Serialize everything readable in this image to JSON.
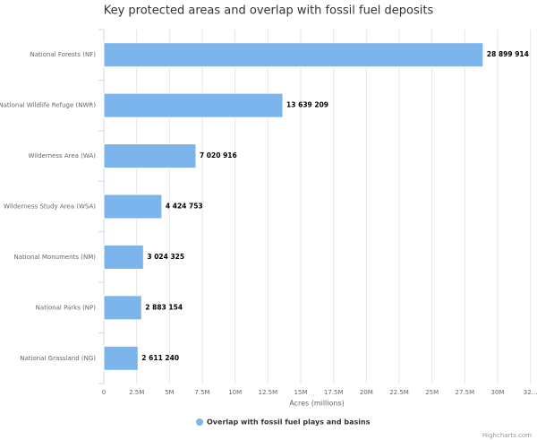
{
  "chart_data": {
    "type": "bar",
    "orientation": "horizontal",
    "title": "Key protected areas and overlap with fossil fuel deposits",
    "categories": [
      "National Forests (NF)",
      "National Wildlife Refuge (NWR)",
      "Wilderness Area (WA)",
      "Wilderness Study Area (WSA)",
      "National Monuments (NM)",
      "National Parks (NP)",
      "National Grassland (NG)"
    ],
    "series": [
      {
        "name": "Overlap with fossil fuel plays and basins",
        "color": "#7cb5ec",
        "values": [
          28899914,
          13639209,
          7020916,
          4424753,
          3024325,
          2883154,
          2611240
        ],
        "value_labels": [
          "28 899 914",
          "13 639 209",
          "7 020 916",
          "4 424 753",
          "3 024 325",
          "2 883 154",
          "2 611 240"
        ]
      }
    ],
    "xlabel": "Acres (millions)",
    "xlim": [
      0,
      32500000
    ],
    "xticks": [
      0,
      {
        "value": 2500000,
        "label": "2.5M"
      },
      {
        "value": 5000000,
        "label": "5M"
      },
      {
        "value": 7500000,
        "label": "7.5M"
      },
      {
        "value": 10000000,
        "label": "10M"
      },
      {
        "value": 12500000,
        "label": "12.5M"
      },
      {
        "value": 15000000,
        "label": "15M"
      },
      {
        "value": 17500000,
        "label": "17.5M"
      },
      {
        "value": 20000000,
        "label": "20M"
      },
      {
        "value": 22500000,
        "label": "22.5M"
      },
      {
        "value": 25000000,
        "label": "25M"
      },
      {
        "value": 27500000,
        "label": "27.5M"
      },
      {
        "value": 30000000,
        "label": "30M"
      },
      {
        "value": 32500000,
        "label": "32…"
      }
    ],
    "grid": true,
    "legend": "bottom",
    "credits": "Highcharts.com"
  }
}
